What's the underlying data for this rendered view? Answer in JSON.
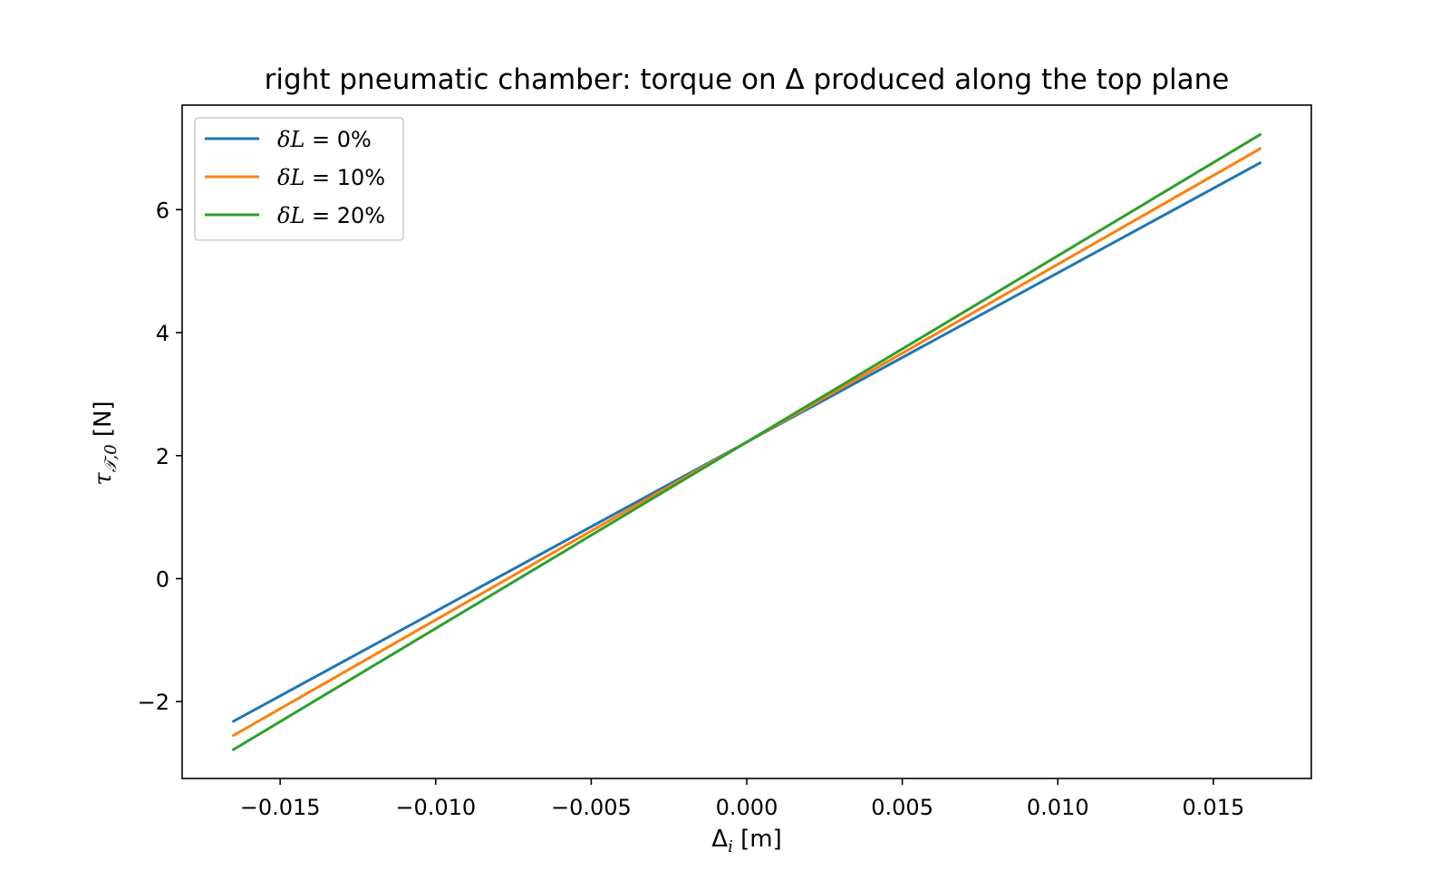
{
  "chart_data": {
    "type": "line",
    "title": "right pneumatic chamber: torque on Δ produced along the top plane",
    "xlabel": {
      "main": "Δ",
      "sub": "i",
      "unit": " [m]"
    },
    "ylabel": {
      "main": "τ",
      "sub": "𝒯,0",
      "unit": " [N]"
    },
    "xlim": [
      -0.01815,
      0.01815
    ],
    "ylim": [
      -3.25,
      7.7
    ],
    "x_ticks": [
      -0.015,
      -0.01,
      -0.005,
      0.0,
      0.005,
      0.01,
      0.015
    ],
    "x_tick_labels": [
      "−0.015",
      "−0.010",
      "−0.005",
      "0.000",
      "0.005",
      "0.010",
      "0.015"
    ],
    "y_ticks": [
      -2,
      0,
      2,
      4,
      6
    ],
    "y_tick_labels": [
      "−2",
      "0",
      "2",
      "4",
      "6"
    ],
    "grid": false,
    "legend_position": "top-left",
    "series": [
      {
        "name": "δL = 0%",
        "legend": {
          "symbol": "δL",
          "eq": " = ",
          "value": "0%"
        },
        "color": "#1f77b4",
        "x": [
          -0.0165,
          0.0165
        ],
        "y": [
          -2.32,
          6.76
        ]
      },
      {
        "name": "δL = 10%",
        "legend": {
          "symbol": "δL",
          "eq": " = ",
          "value": "10%"
        },
        "color": "#ff7f0e",
        "x": [
          -0.0165,
          0.0165
        ],
        "y": [
          -2.55,
          6.99
        ]
      },
      {
        "name": "δL = 20%",
        "legend": {
          "symbol": "δL",
          "eq": " = ",
          "value": "20%"
        },
        "color": "#2ca02c",
        "x": [
          -0.0165,
          0.0165
        ],
        "y": [
          -2.78,
          7.22
        ]
      }
    ]
  }
}
